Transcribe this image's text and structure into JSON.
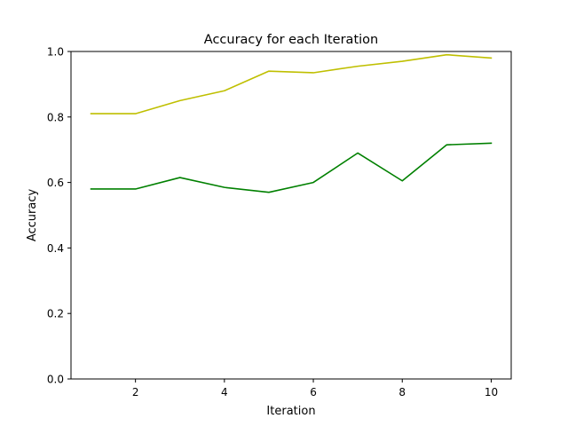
{
  "chart_data": {
    "type": "line",
    "title": "Accuracy for each Iteration",
    "xlabel": "Iteration",
    "ylabel": "Accuracy",
    "xlim": [
      0.55,
      10.45
    ],
    "ylim": [
      0.0,
      1.0
    ],
    "grid": false,
    "x": [
      1,
      2,
      3,
      4,
      5,
      6,
      7,
      8,
      9,
      10
    ],
    "xticks": [
      2,
      4,
      6,
      8,
      10
    ],
    "xtick_labels": [
      "2",
      "4",
      "6",
      "8",
      "10"
    ],
    "yticks": [
      0.0,
      0.2,
      0.4,
      0.6,
      0.8,
      1.0
    ],
    "ytick_labels": [
      "0.0",
      "0.2",
      "0.4",
      "0.6",
      "0.8",
      "1.0"
    ],
    "series": [
      {
        "name": "yellow series",
        "color": "#bfbf00",
        "values": [
          0.81,
          0.81,
          0.85,
          0.88,
          0.94,
          0.935,
          0.955,
          0.97,
          0.99,
          0.98
        ]
      },
      {
        "name": "green series",
        "color": "#008000",
        "values": [
          0.58,
          0.58,
          0.615,
          0.585,
          0.57,
          0.6,
          0.69,
          0.605,
          0.715,
          0.72
        ]
      }
    ]
  }
}
